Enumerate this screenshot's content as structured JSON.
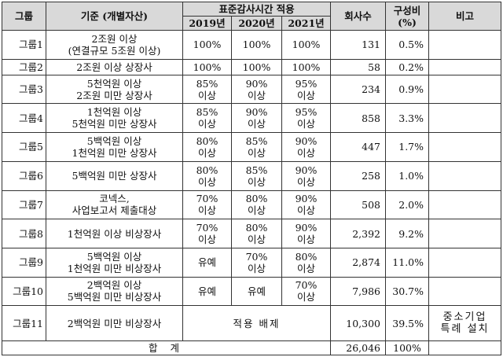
{
  "header": {
    "group": "그룹",
    "criteria": "기준 (개별자산)",
    "standard_time": "표준감사시간 적용",
    "years": [
      "2019년",
      "2020년",
      "2021년"
    ],
    "companies": "회사수",
    "ratio": "구성비 (%)",
    "remarks": "비고"
  },
  "rows": [
    {
      "group": "그룹1",
      "criteria": [
        "2조원 이상",
        "(연결규모 5조원 이상)"
      ],
      "y2019": [
        "100%"
      ],
      "y2020": [
        "100%"
      ],
      "y2021": [
        "100%"
      ],
      "companies": "131",
      "ratio": "0.5%",
      "remark": ""
    },
    {
      "group": "그룹2",
      "criteria": [
        "2조원 이상 상장사"
      ],
      "y2019": [
        "100%"
      ],
      "y2020": [
        "100%"
      ],
      "y2021": [
        "100%"
      ],
      "companies": "58",
      "ratio": "0.2%",
      "remark": ""
    },
    {
      "group": "그룹3",
      "criteria": [
        "5천억원 이상",
        "2조원 미만 상장사"
      ],
      "y2019": [
        "85%",
        "이상"
      ],
      "y2020": [
        "90%",
        "이상"
      ],
      "y2021": [
        "95%",
        "이상"
      ],
      "companies": "234",
      "ratio": "0.9%",
      "remark": ""
    },
    {
      "group": "그룹4",
      "criteria": [
        "1천억원 이상",
        "5천억원 미만 상장사"
      ],
      "y2019": [
        "85%",
        "이상"
      ],
      "y2020": [
        "90%",
        "이상"
      ],
      "y2021": [
        "95%",
        "이상"
      ],
      "companies": "858",
      "ratio": "3.3%",
      "remark": ""
    },
    {
      "group": "그룹5",
      "criteria": [
        "5백억원 이상",
        "1천억원 미만 상장사"
      ],
      "y2019": [
        "80%",
        "이상"
      ],
      "y2020": [
        "85%",
        "이상"
      ],
      "y2021": [
        "90%",
        "이상"
      ],
      "companies": "447",
      "ratio": "1.7%",
      "remark": ""
    },
    {
      "group": "그룹6",
      "criteria": [
        "5백억원 미만 상장사"
      ],
      "y2019": [
        "80%",
        "이상"
      ],
      "y2020": [
        "85%",
        "이상"
      ],
      "y2021": [
        "90%",
        "이상"
      ],
      "companies": "258",
      "ratio": "1.0%",
      "remark": ""
    },
    {
      "group": "그룹7",
      "criteria": [
        "코넥스,",
        "사업보고서 제출대상"
      ],
      "y2019": [
        "70%",
        "이상"
      ],
      "y2020": [
        "80%",
        "이상"
      ],
      "y2021": [
        "90%",
        "이상"
      ],
      "companies": "508",
      "ratio": "2.0%",
      "remark": ""
    },
    {
      "group": "그룹8",
      "criteria": [
        "1천억원 이상 비상장사"
      ],
      "y2019": [
        "70%",
        "이상"
      ],
      "y2020": [
        "80%",
        "이상"
      ],
      "y2021": [
        "90%",
        "이상"
      ],
      "companies": "2,392",
      "ratio": "9.2%",
      "remark": ""
    },
    {
      "group": "그룹9",
      "criteria": [
        "5백억원 이상",
        "1천억원 미만 비상장사"
      ],
      "y2019": [
        "유예"
      ],
      "y2020": [
        "70%",
        "이상"
      ],
      "y2021": [
        "80%",
        "이상"
      ],
      "companies": "2,874",
      "ratio": "11.0%",
      "remark": ""
    },
    {
      "group": "그룹10",
      "criteria": [
        "2백억원 이상",
        "5백억원 미만 비상장사"
      ],
      "y2019": [
        "유예"
      ],
      "y2020": [
        "유예"
      ],
      "y2021": [
        "70%",
        "이상"
      ],
      "companies": "7,986",
      "ratio": "30.7%",
      "remark": ""
    },
    {
      "group": "그룹11",
      "criteria": [
        "2백억원 미만 비상장사"
      ],
      "merged": "적용 배제",
      "companies": "10,300",
      "ratio": "39.5%",
      "remark": [
        "중소기업",
        "특례 설치"
      ]
    }
  ],
  "total": {
    "label": "합 계",
    "companies": "26,046",
    "ratio": "100%"
  }
}
